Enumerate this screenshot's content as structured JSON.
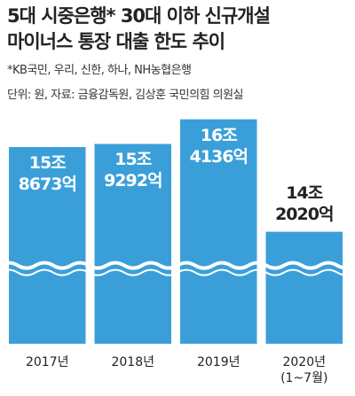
{
  "chart_data": {
    "type": "bar",
    "title": "5대 시중은행* 30대 이하 신규개설\n마이너스 통장 대출 한도 추이",
    "note": "*KB국민, 우리, 신한, 하나, NH농협은행",
    "source": "단위: 원, 자료: 금융감독원, 김상훈 국민의힘 의원실",
    "categories": [
      "2017년",
      "2018년",
      "2019년",
      "2020년\n(1~7월)"
    ],
    "values": [
      158673,
      159292,
      164136,
      142020
    ],
    "value_labels": [
      "15조\n8673억",
      "15조\n9292억",
      "16조\n4136억",
      "14조\n2020억"
    ],
    "color": "#3a9fd9",
    "ylim": [
      120000,
      170000
    ],
    "axis_break": true
  }
}
